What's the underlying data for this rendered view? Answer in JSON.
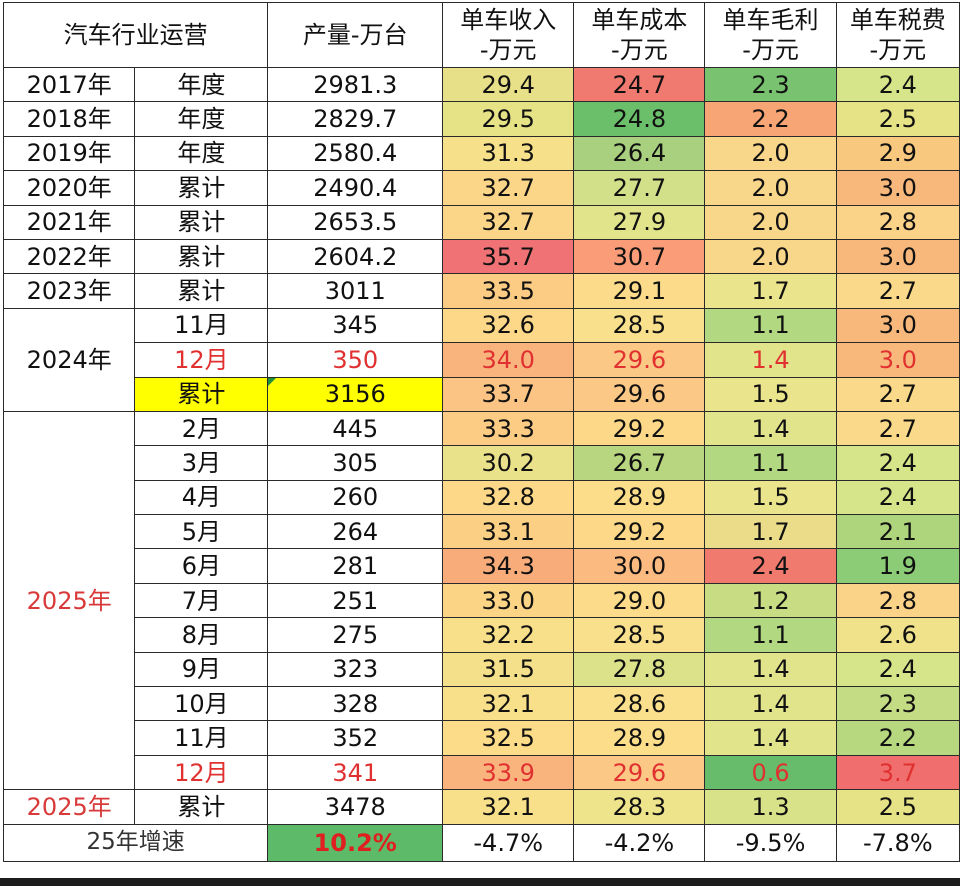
{
  "header": {
    "ops": "汽车行业运营",
    "prod": "产量-万台",
    "revenue": [
      "单车收入",
      "-万元"
    ],
    "cost": [
      "单车成本",
      "-万元"
    ],
    "margin": [
      "单车毛利",
      "-万元"
    ],
    "tax": [
      "单车税费",
      "-万元"
    ]
  },
  "years": {
    "y2024": "2024年",
    "y2025": "2025年",
    "y2025_total": "2025年"
  },
  "rows": [
    {
      "year": "2017年",
      "period": "年度",
      "prod": "2981.3",
      "rev": "29.4",
      "cost": "24.7",
      "margin": "2.3",
      "tax": "2.4",
      "c": [
        "#fff",
        "#fff",
        "#fff",
        "#e8e088",
        "#f07a70",
        "#78c270",
        "#d6e48a"
      ]
    },
    {
      "year": "2018年",
      "period": "年度",
      "prod": "2829.7",
      "rev": "29.5",
      "cost": "24.8",
      "margin": "2.2",
      "tax": "2.5",
      "c": [
        "#fff",
        "#fff",
        "#fff",
        "#e6e286",
        "#6cbf6a",
        "#f8a576",
        "#e6e286"
      ]
    },
    {
      "year": "2019年",
      "period": "年度",
      "prod": "2580.4",
      "rev": "31.3",
      "cost": "26.4",
      "margin": "2.0",
      "tax": "2.9",
      "c": [
        "#fff",
        "#fff",
        "#fff",
        "#f6e08a",
        "#a8d07e",
        "#f8d68a",
        "#f8c87e"
      ]
    },
    {
      "year": "2020年",
      "period": "累计",
      "prod": "2490.4",
      "rev": "32.7",
      "cost": "27.7",
      "margin": "2.0",
      "tax": "3.0",
      "c": [
        "#fff",
        "#fff",
        "#fff",
        "#fcd688",
        "#d2e08a",
        "#f8d68a",
        "#f8b87c"
      ]
    },
    {
      "year": "2021年",
      "period": "累计",
      "prod": "2653.5",
      "rev": "32.7",
      "cost": "27.9",
      "margin": "2.0",
      "tax": "2.8",
      "c": [
        "#fff",
        "#fff",
        "#fff",
        "#fcd688",
        "#e2e48c",
        "#f8d68a",
        "#fad288"
      ]
    },
    {
      "year": "2022年",
      "period": "累计",
      "prod": "2604.2",
      "rev": "35.7",
      "cost": "30.7",
      "margin": "2.0",
      "tax": "3.0",
      "c": [
        "#fff",
        "#fff",
        "#fff",
        "#f07274",
        "#fa9c78",
        "#f8d68a",
        "#f8b87c"
      ]
    },
    {
      "year": "2023年",
      "period": "累计",
      "prod": "3011",
      "rev": "33.5",
      "cost": "29.1",
      "margin": "1.7",
      "tax": "2.7",
      "c": [
        "#fff",
        "#fff",
        "#fff",
        "#fccc84",
        "#fcdc8a",
        "#eae48c",
        "#fada8a"
      ]
    },
    {
      "year": "",
      "period": "11月",
      "prod": "345",
      "rev": "32.6",
      "cost": "28.5",
      "margin": "1.1",
      "tax": "3.0",
      "c": [
        "#fff",
        "#fff",
        "#fff",
        "#fcd888",
        "#f8e08c",
        "#b2d882",
        "#f8b87c"
      ],
      "y": "2024"
    },
    {
      "year": "",
      "period": "12月",
      "prod": "350",
      "rev": "34.0",
      "cost": "29.6",
      "margin": "1.4",
      "tax": "3.0",
      "c": [
        "#fff",
        "#fff",
        "#fff",
        "#f8b47c",
        "#fcc886",
        "#e2e48c",
        "#f8b87c"
      ],
      "y": "2024",
      "red": true
    },
    {
      "year": "",
      "period": "累计",
      "prod": "3156",
      "rev": "33.7",
      "cost": "29.6",
      "margin": "1.5",
      "tax": "2.7",
      "c": [
        "#fff",
        "#ffff00",
        "#ffff00",
        "#fcc484",
        "#fcc886",
        "#eae48c",
        "#fada8a"
      ],
      "y": "2024"
    },
    {
      "year": "",
      "period": "2月",
      "prod": "445",
      "rev": "33.3",
      "cost": "29.2",
      "margin": "1.4",
      "tax": "2.7",
      "c": [
        "#fff",
        "#fff",
        "#fff",
        "#fccc84",
        "#fcd888",
        "#e2e48c",
        "#fada8a"
      ],
      "y": "2025"
    },
    {
      "year": "",
      "period": "3月",
      "prod": "305",
      "rev": "30.2",
      "cost": "26.7",
      "margin": "1.1",
      "tax": "2.4",
      "c": [
        "#fff",
        "#fff",
        "#fff",
        "#eae28a",
        "#b8d680",
        "#b2d882",
        "#d6e48a"
      ],
      "y": "2025"
    },
    {
      "year": "",
      "period": "4月",
      "prod": "260",
      "rev": "32.8",
      "cost": "28.9",
      "margin": "1.5",
      "tax": "2.4",
      "c": [
        "#fff",
        "#fff",
        "#fff",
        "#fcd888",
        "#fcde8a",
        "#eae48c",
        "#d6e48a"
      ],
      "y": "2025"
    },
    {
      "year": "",
      "period": "5月",
      "prod": "264",
      "rev": "33.1",
      "cost": "29.2",
      "margin": "1.7",
      "tax": "2.1",
      "c": [
        "#fff",
        "#fff",
        "#fff",
        "#fcd084",
        "#fcd888",
        "#eadc88",
        "#aed47c"
      ],
      "y": "2025"
    },
    {
      "year": "",
      "period": "6月",
      "prod": "281",
      "rev": "34.3",
      "cost": "30.0",
      "margin": "2.4",
      "tax": "1.9",
      "c": [
        "#fff",
        "#fff",
        "#fff",
        "#f8ac7a",
        "#fbba80",
        "#f07a6e",
        "#8ccc76"
      ],
      "y": "2025"
    },
    {
      "year": "",
      "period": "7月",
      "prod": "251",
      "rev": "33.0",
      "cost": "29.0",
      "margin": "1.2",
      "tax": "2.8",
      "c": [
        "#fff",
        "#fff",
        "#fff",
        "#fcd486",
        "#fcdc8a",
        "#c8dc84",
        "#fad288"
      ],
      "y": "2025"
    },
    {
      "year": "",
      "period": "8月",
      "prod": "275",
      "rev": "32.2",
      "cost": "28.5",
      "margin": "1.1",
      "tax": "2.6",
      "c": [
        "#fff",
        "#fff",
        "#fff",
        "#f8e08a",
        "#f8e08c",
        "#b2d882",
        "#f0e28a"
      ],
      "y": "2025"
    },
    {
      "year": "",
      "period": "9月",
      "prod": "323",
      "rev": "31.5",
      "cost": "27.8",
      "margin": "1.4",
      "tax": "2.4",
      "c": [
        "#fff",
        "#fff",
        "#fff",
        "#f4e08a",
        "#dce28a",
        "#e2e48c",
        "#d6e48a"
      ],
      "y": "2025"
    },
    {
      "year": "",
      "period": "10月",
      "prod": "328",
      "rev": "32.1",
      "cost": "28.6",
      "margin": "1.4",
      "tax": "2.3",
      "c": [
        "#fff",
        "#fff",
        "#fff",
        "#f8e08a",
        "#fae08c",
        "#e2e48c",
        "#c4dc84"
      ],
      "y": "2025"
    },
    {
      "year": "",
      "period": "11月",
      "prod": "352",
      "rev": "32.5",
      "cost": "28.9",
      "margin": "1.4",
      "tax": "2.2",
      "c": [
        "#fff",
        "#fff",
        "#fff",
        "#fcdc88",
        "#fcde8a",
        "#e2e48c",
        "#b8d880"
      ],
      "y": "2025"
    },
    {
      "year": "",
      "period": "12月",
      "prod": "341",
      "rev": "33.9",
      "cost": "29.6",
      "margin": "0.6",
      "tax": "3.7",
      "c": [
        "#fff",
        "#fff",
        "#fff",
        "#f8b47c",
        "#fcc886",
        "#66bc6a",
        "#f06e6e"
      ],
      "y": "2025",
      "red": true
    },
    {
      "year": "2025年",
      "period": "累计",
      "prod": "3478",
      "rev": "32.1",
      "cost": "28.3",
      "margin": "1.3",
      "tax": "2.5",
      "c": [
        "#fff",
        "#fff",
        "#fff",
        "#f8e08a",
        "#eee48c",
        "#d8e288",
        "#e6e286"
      ]
    }
  ],
  "growth": {
    "label": "25年增速",
    "prod": "10.2%",
    "rev": "-4.7%",
    "cost": "-4.2%",
    "margin": "-9.5%",
    "tax": "-7.8%",
    "prod_bg": "#5cba68",
    "bg": "#ffffff"
  }
}
